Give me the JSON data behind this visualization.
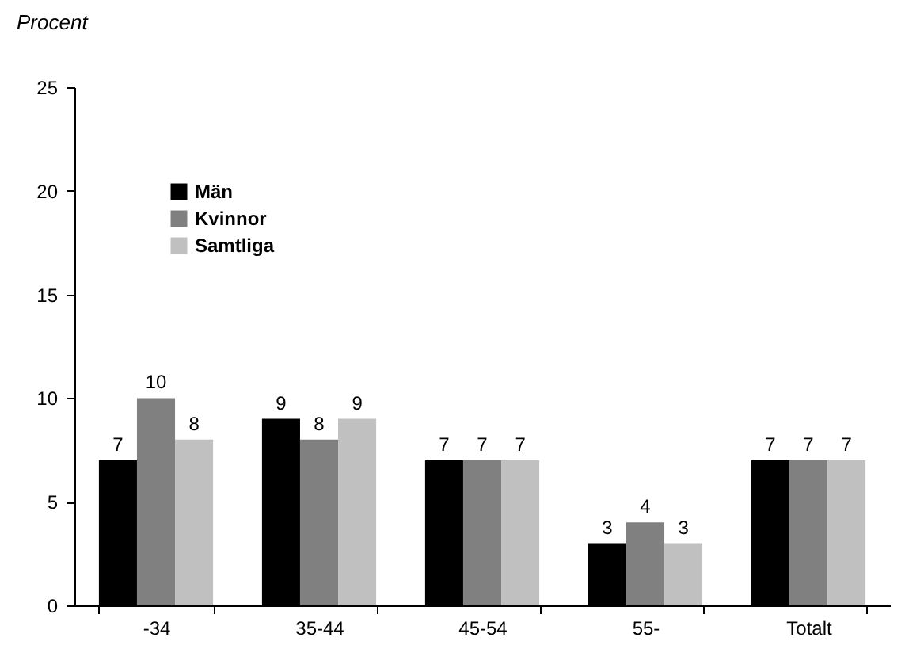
{
  "chart_data": {
    "type": "bar",
    "ylabel": "Procent",
    "categories": [
      "-34",
      "35-44",
      "45-54",
      "55-",
      "Totalt"
    ],
    "series": [
      {
        "name": "Män",
        "color": "#000000",
        "values": [
          7,
          9,
          7,
          3,
          7
        ]
      },
      {
        "name": "Kvinnor",
        "color": "#808080",
        "values": [
          10,
          8,
          7,
          4,
          7
        ]
      },
      {
        "name": "Samtliga",
        "color": "#c0c0c0",
        "values": [
          8,
          9,
          7,
          3,
          7
        ]
      }
    ],
    "ylim": [
      0,
      25
    ],
    "yticks": [
      0,
      5,
      10,
      15,
      20,
      25
    ],
    "grid": false,
    "legend": "top left",
    "data_labels": true
  }
}
